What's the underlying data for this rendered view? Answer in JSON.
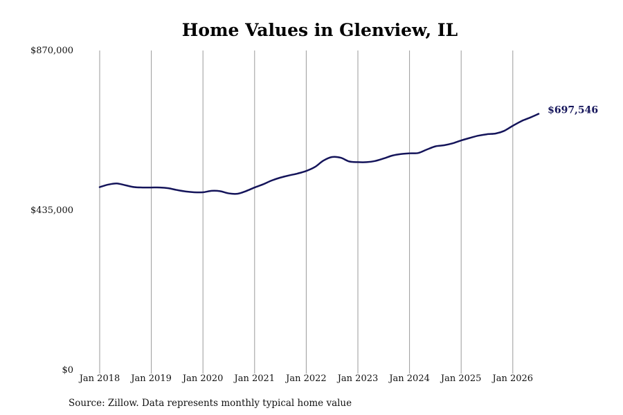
{
  "chart_data": {
    "type": "line",
    "title": "Home Values in Glenview, IL",
    "xlabel": "",
    "ylabel": "",
    "ylim": [
      0,
      870000
    ],
    "yticks": [
      {
        "value": 0,
        "label": "$0"
      },
      {
        "value": 435000,
        "label": "$435,000"
      },
      {
        "value": 870000,
        "label": "$870,000"
      }
    ],
    "xticks": [
      {
        "t": 2018,
        "label": "Jan 2018"
      },
      {
        "t": 2019,
        "label": "Jan 2019"
      },
      {
        "t": 2020,
        "label": "Jan 2020"
      },
      {
        "t": 2021,
        "label": "Jan 2021"
      },
      {
        "t": 2022,
        "label": "Jan 2022"
      },
      {
        "t": 2023,
        "label": "Jan 2023"
      },
      {
        "t": 2024,
        "label": "Jan 2024"
      },
      {
        "t": 2025,
        "label": "Jan 2025"
      },
      {
        "t": 2026,
        "label": "Jan 2026"
      }
    ],
    "grid": "vertical",
    "line_color": "#14145a",
    "end_label": "$697,546",
    "series": [
      {
        "x": [
          2018.0,
          2018.17,
          2018.33,
          2018.5,
          2018.67,
          2018.83,
          2019.0,
          2019.17,
          2019.33,
          2019.5,
          2019.67,
          2019.83,
          2020.0,
          2020.17,
          2020.33,
          2020.5,
          2020.67,
          2020.83,
          2021.0,
          2021.17,
          2021.33,
          2021.5,
          2021.67,
          2021.83,
          2022.0,
          2022.17,
          2022.33,
          2022.5,
          2022.67,
          2022.83,
          2023.0,
          2023.17,
          2023.33,
          2023.5,
          2023.67,
          2023.83,
          2024.0,
          2024.17,
          2024.33,
          2024.5,
          2024.67,
          2024.83,
          2025.0,
          2025.17,
          2025.33,
          2025.5,
          2025.67,
          2025.83,
          2026.0,
          2026.17,
          2026.33,
          2026.5
        ],
        "values": [
          498000,
          505000,
          508000,
          503000,
          498000,
          497000,
          497000,
          497000,
          495000,
          490000,
          486000,
          484000,
          484000,
          488000,
          487000,
          481000,
          480000,
          487000,
          497000,
          506000,
          516000,
          524000,
          530000,
          535000,
          542000,
          553000,
          570000,
          580000,
          578000,
          568000,
          566000,
          566000,
          569000,
          576000,
          584000,
          588000,
          590000,
          591000,
          600000,
          609000,
          612000,
          617000,
          625000,
          632000,
          638000,
          642000,
          644000,
          651000,
          665000,
          678000,
          687000,
          697546
        ]
      }
    ]
  },
  "footer": {
    "source": "Source: Zillow. Data represents monthly typical home value"
  }
}
